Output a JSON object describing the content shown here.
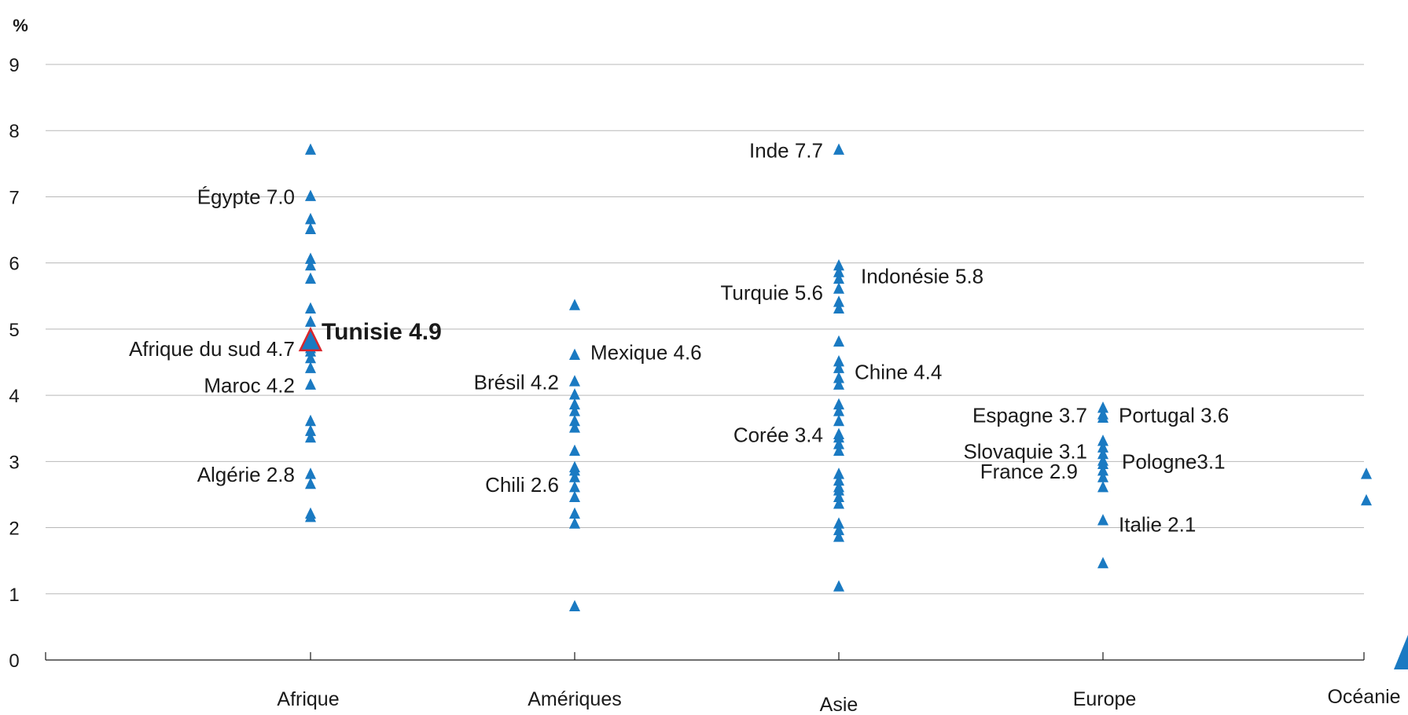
{
  "chart_data": {
    "type": "scatter",
    "title": "",
    "xlabel": "",
    "ylabel": "",
    "unit_label": "%",
    "ylim": [
      0,
      9
    ],
    "yticks": [
      0,
      1,
      2,
      3,
      4,
      5,
      6,
      7,
      8,
      9
    ],
    "grid": true,
    "colors": {
      "marker": "#1a7ac2",
      "highlight_fill": "#1a7ac2",
      "highlight_stroke": "#d9262c",
      "text": "#1a1a1a"
    },
    "categories": [
      "Afrique",
      "Amériques",
      "Asie",
      "Europe",
      "Océanie"
    ],
    "series": [
      {
        "category": "Afrique",
        "values": [
          7.7,
          7.0,
          6.65,
          6.5,
          6.05,
          5.95,
          5.75,
          5.3,
          5.1,
          4.9,
          4.8,
          4.7,
          4.65,
          4.55,
          4.4,
          4.15,
          3.6,
          3.45,
          3.35,
          2.8,
          2.65,
          2.2,
          2.15
        ]
      },
      {
        "category": "Amériques",
        "values": [
          5.35,
          4.6,
          4.2,
          4.0,
          3.85,
          3.75,
          3.6,
          3.5,
          3.15,
          2.9,
          2.85,
          2.75,
          2.6,
          2.45,
          2.2,
          2.05,
          0.8
        ]
      },
      {
        "category": "Asie",
        "values": [
          7.7,
          5.95,
          5.85,
          5.75,
          5.6,
          5.4,
          5.3,
          4.8,
          4.5,
          4.4,
          4.25,
          4.15,
          3.85,
          3.75,
          3.6,
          3.4,
          3.35,
          3.25,
          3.15,
          2.8,
          2.7,
          2.6,
          2.55,
          2.45,
          2.35,
          2.05,
          1.95,
          1.85,
          1.1
        ]
      },
      {
        "category": "Europe",
        "values": [
          3.8,
          3.7,
          3.65,
          3.3,
          3.2,
          3.1,
          3.0,
          2.95,
          2.85,
          2.75,
          2.6,
          2.1,
          1.45
        ]
      },
      {
        "category": "Océanie",
        "values": [
          2.8,
          2.4
        ]
      }
    ],
    "highlight": {
      "category": "Afrique",
      "value": 4.8
    },
    "annotations": [
      {
        "category": "Afrique",
        "text": "Égypte 7.0",
        "value": 7.0,
        "side": "left"
      },
      {
        "category": "Afrique",
        "text": "Afrique du sud 4.7",
        "value": 4.7,
        "side": "left"
      },
      {
        "category": "Afrique",
        "text": "Maroc 4.2",
        "value": 4.15,
        "side": "left"
      },
      {
        "category": "Afrique",
        "text": "Algérie 2.8",
        "value": 2.8,
        "side": "left"
      },
      {
        "category": "Afrique",
        "text": "Tunisie 4.9",
        "value": 4.95,
        "side": "right",
        "strong": true
      },
      {
        "category": "Amériques",
        "text": "Mexique 4.6",
        "value": 4.65,
        "side": "right"
      },
      {
        "category": "Amériques",
        "text": "Brésil 4.2",
        "value": 4.2,
        "side": "left"
      },
      {
        "category": "Amériques",
        "text": "Chili 2.6",
        "value": 2.65,
        "side": "left"
      },
      {
        "category": "Asie",
        "text": "Inde 7.7",
        "value": 7.7,
        "side": "left"
      },
      {
        "category": "Asie",
        "text": "Turquie 5.6",
        "value": 5.55,
        "side": "left"
      },
      {
        "category": "Asie",
        "text": "Indonésie 5.8",
        "value": 5.8,
        "side": "right",
        "offset": 28
      },
      {
        "category": "Asie",
        "text": "Chine 4.4",
        "value": 4.35,
        "side": "right"
      },
      {
        "category": "Asie",
        "text": "Corée 3.4",
        "value": 3.4,
        "side": "left"
      },
      {
        "category": "Europe",
        "text": "Espagne 3.7",
        "value": 3.7,
        "side": "left"
      },
      {
        "category": "Europe",
        "text": "Portugal 3.6",
        "value": 3.7,
        "side": "right"
      },
      {
        "category": "Europe",
        "text": "Slovaquie  3.1",
        "value": 3.15,
        "side": "left"
      },
      {
        "category": "Europe",
        "text": "France 2.9",
        "value": 2.85,
        "side": "left",
        "offset": 32
      },
      {
        "category": "Europe",
        "text": "Pologne3.1",
        "value": 3.0,
        "side": "right",
        "offset": 24
      },
      {
        "category": "Europe",
        "text": "Italie 2.1",
        "value": 2.05,
        "side": "right"
      }
    ]
  }
}
